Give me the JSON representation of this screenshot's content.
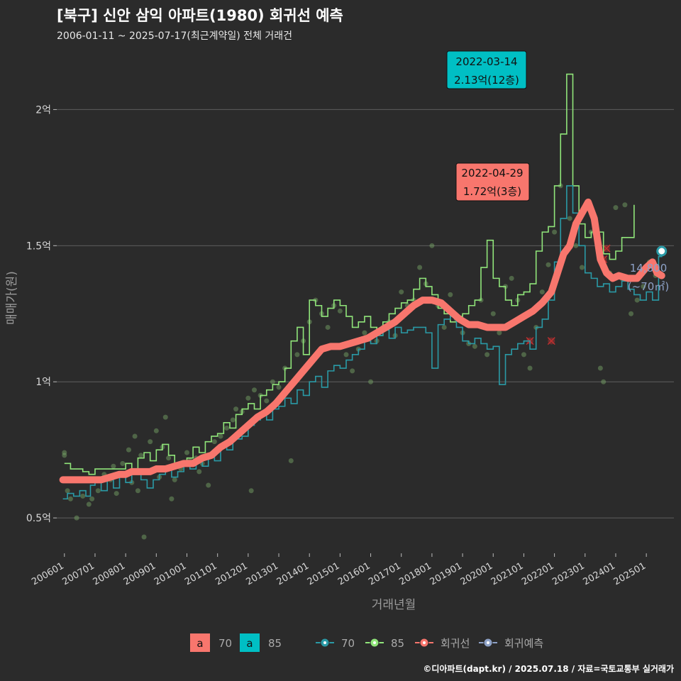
{
  "title": "[북구] 신안 삼익 아파트(1980) 회귀선 예측",
  "subtitle": "2006-01-11 ~ 2025-07-17(최근계약일) 전체 거래건",
  "credit": "©디아파트(dapt.kr) / 2025.07.18 / 자료=국토교통부 실거래가",
  "colors": {
    "background": "#2b2b2b",
    "grid": "#5e5e5e",
    "s70": "#2a9aa6",
    "s85": "#90e57a",
    "regression": "#f8766d",
    "forecast": "#8ea2c8",
    "label70": "#f8766d",
    "label85": "#00bfc4"
  },
  "chart_data": {
    "type": "line",
    "title": "[북구] 신안 삼익 아파트(1980) 회귀선 예측",
    "subtitle": "2006-01-11 ~ 2025-07-17(최근계약일) 전체 거래건",
    "xlabel": "거래년월",
    "ylabel": "매매가(원)",
    "ylim": [
      0.37,
      2.22
    ],
    "y_unit": "억",
    "yticks": [
      {
        "value": 0.5,
        "label": "0.5억"
      },
      {
        "value": 1.0,
        "label": "1억"
      },
      {
        "value": 1.5,
        "label": "1.5억"
      },
      {
        "value": 2.0,
        "label": "2억"
      }
    ],
    "xticks": [
      {
        "value": 2006.0,
        "label": "200601"
      },
      {
        "value": 2007.0,
        "label": "200701"
      },
      {
        "value": 2008.0,
        "label": "200801"
      },
      {
        "value": 2009.0,
        "label": "200901"
      },
      {
        "value": 2010.0,
        "label": "201001"
      },
      {
        "value": 2011.0,
        "label": "201101"
      },
      {
        "value": 2012.0,
        "label": "201201"
      },
      {
        "value": 2013.0,
        "label": "201301"
      },
      {
        "value": 2014.0,
        "label": "201401"
      },
      {
        "value": 2015.0,
        "label": "201501"
      },
      {
        "value": 2016.0,
        "label": "201601"
      },
      {
        "value": 2017.0,
        "label": "201701"
      },
      {
        "value": 2018.0,
        "label": "201801"
      },
      {
        "value": 2019.0,
        "label": "201901"
      },
      {
        "value": 2020.0,
        "label": "202001"
      },
      {
        "value": 2021.0,
        "label": "202101"
      },
      {
        "value": 2022.0,
        "label": "202201"
      },
      {
        "value": 2023.0,
        "label": "202301"
      },
      {
        "value": 2024.0,
        "label": "202401"
      },
      {
        "value": 2025.0,
        "label": "202501"
      }
    ],
    "grid": true,
    "legend_position": "bottom",
    "series": [
      {
        "name": "70",
        "color": "#2a9aa6",
        "x": [
          2005.95,
          2006.1,
          2006.3,
          2006.5,
          2006.7,
          2006.85,
          2007.0,
          2007.2,
          2007.4,
          2007.6,
          2007.8,
          2008.0,
          2008.2,
          2008.5,
          2008.7,
          2008.9,
          2009.1,
          2009.3,
          2009.5,
          2009.7,
          2009.9,
          2010.1,
          2010.3,
          2010.5,
          2010.7,
          2010.9,
          2011.1,
          2011.3,
          2011.5,
          2011.8,
          2012.0,
          2012.2,
          2012.4,
          2012.6,
          2012.8,
          2013.0,
          2013.2,
          2013.4,
          2013.6,
          2013.8,
          2014.0,
          2014.2,
          2014.4,
          2014.6,
          2014.8,
          2015.0,
          2015.2,
          2015.4,
          2015.6,
          2015.8,
          2016.0,
          2016.2,
          2016.4,
          2016.6,
          2016.8,
          2017.0,
          2017.2,
          2017.4,
          2017.6,
          2017.8,
          2018.0,
          2018.2,
          2018.4,
          2018.6,
          2018.8,
          2019.0,
          2019.2,
          2019.4,
          2019.6,
          2019.8,
          2020.0,
          2020.2,
          2020.4,
          2020.6,
          2020.8,
          2021.0,
          2021.2,
          2021.4,
          2021.6,
          2021.8,
          2022.0,
          2022.2,
          2022.4,
          2022.6,
          2022.8,
          2023.0,
          2023.2,
          2023.4,
          2023.6,
          2023.8,
          2024.0,
          2024.2,
          2024.4,
          2024.6,
          2024.8,
          2025.0,
          2025.2,
          2025.4,
          2025.5
        ],
        "y": [
          0.57,
          0.59,
          0.58,
          0.6,
          0.58,
          0.62,
          0.63,
          0.6,
          0.64,
          0.61,
          0.65,
          0.63,
          0.66,
          0.64,
          0.61,
          0.64,
          0.66,
          0.68,
          0.65,
          0.67,
          0.7,
          0.68,
          0.72,
          0.69,
          0.73,
          0.71,
          0.76,
          0.75,
          0.79,
          0.8,
          0.84,
          0.86,
          0.88,
          0.86,
          0.9,
          0.91,
          0.94,
          0.92,
          0.97,
          0.95,
          1.0,
          1.02,
          0.98,
          1.04,
          1.06,
          1.05,
          1.08,
          1.1,
          1.12,
          1.15,
          1.14,
          1.17,
          1.19,
          1.16,
          1.2,
          1.18,
          1.19,
          1.2,
          1.2,
          1.18,
          1.05,
          1.21,
          1.23,
          1.24,
          1.2,
          1.15,
          1.14,
          1.16,
          1.14,
          1.12,
          1.13,
          0.99,
          1.1,
          1.12,
          1.14,
          1.15,
          1.12,
          1.2,
          1.23,
          1.3,
          1.44,
          1.6,
          1.72,
          1.62,
          1.5,
          1.4,
          1.38,
          1.35,
          1.36,
          1.33,
          1.35,
          1.37,
          1.34,
          1.32,
          1.3,
          1.33,
          1.3,
          1.46,
          1.48
        ]
      },
      {
        "name": "85",
        "color": "#90e57a",
        "x": [
          2006.0,
          2006.2,
          2006.4,
          2006.6,
          2006.8,
          2007.0,
          2007.2,
          2007.5,
          2007.8,
          2008.0,
          2008.2,
          2008.4,
          2008.6,
          2008.8,
          2009.0,
          2009.2,
          2009.4,
          2009.6,
          2009.8,
          2010.0,
          2010.2,
          2010.4,
          2010.6,
          2010.8,
          2011.0,
          2011.2,
          2011.4,
          2011.6,
          2011.8,
          2012.0,
          2012.2,
          2012.4,
          2012.6,
          2012.8,
          2013.0,
          2013.2,
          2013.4,
          2013.6,
          2013.8,
          2014.0,
          2014.2,
          2014.4,
          2014.6,
          2014.8,
          2015.0,
          2015.2,
          2015.4,
          2015.6,
          2015.8,
          2016.0,
          2016.2,
          2016.4,
          2016.6,
          2016.8,
          2017.0,
          2017.2,
          2017.4,
          2017.6,
          2017.8,
          2018.0,
          2018.2,
          2018.4,
          2018.6,
          2018.8,
          2019.0,
          2019.2,
          2019.4,
          2019.6,
          2019.8,
          2020.0,
          2020.2,
          2020.4,
          2020.6,
          2020.8,
          2021.0,
          2021.2,
          2021.4,
          2021.6,
          2021.8,
          2022.0,
          2022.2,
          2022.4,
          2022.6,
          2022.8,
          2023.0,
          2023.2,
          2023.4,
          2023.6,
          2023.8,
          2024.0,
          2024.2,
          2024.4,
          2024.6
        ],
        "y": [
          0.7,
          0.68,
          0.68,
          0.67,
          0.66,
          0.68,
          0.68,
          0.68,
          0.68,
          0.7,
          0.68,
          0.72,
          0.74,
          0.71,
          0.75,
          0.77,
          0.73,
          0.7,
          0.7,
          0.72,
          0.76,
          0.74,
          0.78,
          0.8,
          0.81,
          0.85,
          0.83,
          0.88,
          0.9,
          0.92,
          0.9,
          0.95,
          0.97,
          0.99,
          1.0,
          1.05,
          1.15,
          1.2,
          1.1,
          1.3,
          1.28,
          1.24,
          1.27,
          1.3,
          1.28,
          1.24,
          1.2,
          1.22,
          1.24,
          1.2,
          1.17,
          1.22,
          1.25,
          1.27,
          1.29,
          1.3,
          1.34,
          1.38,
          1.35,
          1.32,
          1.27,
          1.25,
          1.22,
          1.24,
          1.25,
          1.28,
          1.3,
          1.42,
          1.52,
          1.38,
          1.35,
          1.3,
          1.28,
          1.32,
          1.33,
          1.36,
          1.48,
          1.55,
          1.57,
          1.72,
          1.91,
          2.13,
          1.72,
          1.58,
          1.53,
          1.55,
          1.55,
          1.47,
          1.45,
          1.48,
          1.53,
          1.53,
          1.65
        ]
      },
      {
        "name": "회귀선",
        "color": "#f8766d",
        "x": [
          2005.95,
          2006.2,
          2006.5,
          2006.8,
          2007.0,
          2007.2,
          2007.5,
          2007.8,
          2008.0,
          2008.2,
          2008.5,
          2008.8,
          2009.0,
          2009.3,
          2009.6,
          2009.9,
          2010.2,
          2010.5,
          2010.8,
          2011.1,
          2011.4,
          2011.7,
          2012.0,
          2012.3,
          2012.6,
          2012.9,
          2013.2,
          2013.5,
          2013.8,
          2014.1,
          2014.4,
          2014.7,
          2015.0,
          2015.3,
          2015.6,
          2015.9,
          2016.2,
          2016.5,
          2016.8,
          2017.1,
          2017.4,
          2017.7,
          2018.0,
          2018.3,
          2018.6,
          2018.9,
          2019.2,
          2019.5,
          2019.8,
          2020.1,
          2020.4,
          2020.7,
          2021.0,
          2021.3,
          2021.6,
          2021.9,
          2022.1,
          2022.3,
          2022.5,
          2022.7,
          2022.9,
          2023.1,
          2023.3,
          2023.5,
          2023.7,
          2023.9,
          2024.1,
          2024.4,
          2024.7,
          2025.0,
          2025.2
        ],
        "y": [
          0.64,
          0.64,
          0.64,
          0.64,
          0.64,
          0.64,
          0.65,
          0.66,
          0.66,
          0.67,
          0.67,
          0.67,
          0.68,
          0.68,
          0.69,
          0.7,
          0.7,
          0.72,
          0.73,
          0.76,
          0.78,
          0.81,
          0.84,
          0.87,
          0.89,
          0.92,
          0.96,
          1.0,
          1.04,
          1.08,
          1.12,
          1.13,
          1.13,
          1.14,
          1.15,
          1.16,
          1.18,
          1.2,
          1.22,
          1.25,
          1.28,
          1.3,
          1.3,
          1.29,
          1.26,
          1.23,
          1.21,
          1.21,
          1.2,
          1.2,
          1.2,
          1.22,
          1.24,
          1.26,
          1.29,
          1.33,
          1.4,
          1.47,
          1.5,
          1.58,
          1.62,
          1.66,
          1.6,
          1.45,
          1.4,
          1.38,
          1.39,
          1.38,
          1.38,
          1.42,
          1.44
        ]
      },
      {
        "name": "회귀예측",
        "color": "#8ea2c8",
        "x": [
          2025.2,
          2025.35,
          2025.5
        ],
        "y": [
          1.44,
          1.4,
          1.39
        ]
      }
    ],
    "scatter_points": [
      [
        2006.0,
        0.73
      ],
      [
        2006.0,
        0.74
      ],
      [
        2006.1,
        0.6
      ],
      [
        2006.2,
        0.57
      ],
      [
        2006.4,
        0.5
      ],
      [
        2006.6,
        0.58
      ],
      [
        2006.8,
        0.55
      ],
      [
        2006.9,
        0.57
      ],
      [
        2007.1,
        0.6
      ],
      [
        2007.3,
        0.66
      ],
      [
        2007.5,
        0.64
      ],
      [
        2007.6,
        0.69
      ],
      [
        2007.7,
        0.59
      ],
      [
        2007.9,
        0.7
      ],
      [
        2008.1,
        0.75
      ],
      [
        2008.2,
        0.63
      ],
      [
        2008.3,
        0.8
      ],
      [
        2008.4,
        0.6
      ],
      [
        2008.5,
        0.73
      ],
      [
        2008.6,
        0.43
      ],
      [
        2008.8,
        0.78
      ],
      [
        2009.0,
        0.82
      ],
      [
        2009.1,
        0.65
      ],
      [
        2009.2,
        0.76
      ],
      [
        2009.3,
        0.87
      ],
      [
        2009.4,
        0.72
      ],
      [
        2009.5,
        0.57
      ],
      [
        2009.6,
        0.64
      ],
      [
        2009.8,
        0.68
      ],
      [
        2010.0,
        0.74
      ],
      [
        2010.1,
        0.71
      ],
      [
        2010.3,
        0.72
      ],
      [
        2010.4,
        0.67
      ],
      [
        2010.5,
        0.7
      ],
      [
        2010.7,
        0.62
      ],
      [
        2010.9,
        0.78
      ],
      [
        2011.1,
        0.8
      ],
      [
        2011.3,
        0.83
      ],
      [
        2011.5,
        0.86
      ],
      [
        2011.6,
        0.9
      ],
      [
        2011.8,
        0.89
      ],
      [
        2012.0,
        0.94
      ],
      [
        2012.1,
        0.6
      ],
      [
        2012.2,
        0.97
      ],
      [
        2012.4,
        0.95
      ],
      [
        2012.6,
        0.93
      ],
      [
        2012.8,
        1.0
      ],
      [
        2013.0,
        0.98
      ],
      [
        2013.2,
        1.05
      ],
      [
        2013.4,
        0.71
      ],
      [
        2013.6,
        1.1
      ],
      [
        2013.8,
        1.15
      ],
      [
        2014.0,
        1.22
      ],
      [
        2014.2,
        1.3
      ],
      [
        2014.4,
        1.25
      ],
      [
        2014.6,
        1.2
      ],
      [
        2014.8,
        1.28
      ],
      [
        2015.0,
        1.26
      ],
      [
        2015.2,
        1.1
      ],
      [
        2015.4,
        1.04
      ],
      [
        2015.6,
        1.12
      ],
      [
        2015.8,
        1.18
      ],
      [
        2016.0,
        1.0
      ],
      [
        2016.2,
        1.15
      ],
      [
        2016.4,
        1.2
      ],
      [
        2016.6,
        1.22
      ],
      [
        2016.8,
        1.17
      ],
      [
        2017.0,
        1.33
      ],
      [
        2017.2,
        1.28
      ],
      [
        2017.4,
        1.3
      ],
      [
        2017.6,
        1.42
      ],
      [
        2017.8,
        1.36
      ],
      [
        2018.0,
        1.5
      ],
      [
        2018.2,
        1.28
      ],
      [
        2018.4,
        1.2
      ],
      [
        2018.6,
        1.32
      ],
      [
        2018.8,
        1.23
      ],
      [
        2019.0,
        1.18
      ],
      [
        2019.2,
        1.14
      ],
      [
        2019.4,
        1.13
      ],
      [
        2019.6,
        1.3
      ],
      [
        2019.8,
        1.1
      ],
      [
        2020.0,
        1.25
      ],
      [
        2020.2,
        1.18
      ],
      [
        2020.4,
        1.35
      ],
      [
        2020.6,
        1.38
      ],
      [
        2020.8,
        1.3
      ],
      [
        2021.0,
        1.1
      ],
      [
        2021.2,
        1.05
      ],
      [
        2021.4,
        1.2
      ],
      [
        2021.6,
        1.33
      ],
      [
        2021.8,
        1.43
      ],
      [
        2022.0,
        1.55
      ],
      [
        2022.2,
        1.72
      ],
      [
        2022.5,
        1.6
      ],
      [
        2022.7,
        1.5
      ],
      [
        2022.9,
        1.42
      ],
      [
        2023.2,
        1.55
      ],
      [
        2023.5,
        1.05
      ],
      [
        2023.6,
        1.0
      ],
      [
        2023.8,
        1.4
      ],
      [
        2024.0,
        1.64
      ],
      [
        2024.2,
        1.38
      ],
      [
        2024.3,
        1.65
      ],
      [
        2024.5,
        1.25
      ],
      [
        2024.7,
        1.3
      ],
      [
        2024.9,
        1.35
      ],
      [
        2025.1,
        1.44
      ],
      [
        2025.3,
        1.39
      ]
    ],
    "x_marks": [
      [
        2021.2,
        1.15
      ],
      [
        2021.9,
        1.15
      ],
      [
        2023.6,
        1.45
      ],
      [
        2023.7,
        1.49
      ]
    ],
    "annotations": [
      {
        "date": "2022-03-14",
        "text": "2.13억(12층)",
        "x": 2022.2,
        "y": 2.13,
        "series": "85"
      },
      {
        "date": "2022-04-29",
        "text": "1.72억(3층)",
        "x": 2022.33,
        "y": 1.72,
        "series": "70"
      }
    ],
    "forecast_label": {
      "value": "14,800",
      "sub": "(~70㎡)",
      "x": 2025.5,
      "y": 1.48
    },
    "legend_boxes": [
      {
        "glyph": "a",
        "label": "70",
        "color": "#f8766d"
      },
      {
        "glyph": "a",
        "label": "85",
        "color": "#00bfc4"
      }
    ],
    "legend_lines": [
      {
        "label": "70",
        "color": "#2a9aa6"
      },
      {
        "label": "85",
        "color": "#90e57a"
      },
      {
        "label": "회귀선",
        "color": "#f8766d"
      },
      {
        "label": "회귀예측",
        "color": "#8ea2c8"
      }
    ]
  }
}
